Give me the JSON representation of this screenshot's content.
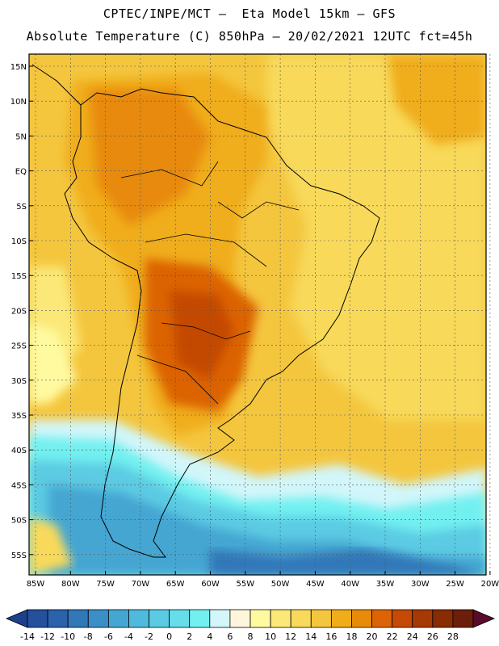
{
  "header": {
    "line1": "CPTEC/INPE/MCT –  Eta Model 15km – GFS",
    "line2": "Absolute Temperature (C) 850hPa – 20/02/2021 12UTC fct=45h"
  },
  "map": {
    "lat_labels": [
      "15N",
      "10N",
      "5N",
      "EQ",
      "5S",
      "10S",
      "15S",
      "20S",
      "25S",
      "30S",
      "35S",
      "40S",
      "45S",
      "50S",
      "55S"
    ],
    "lon_labels": [
      "85W",
      "80W",
      "75W",
      "70W",
      "65W",
      "60W",
      "55W",
      "50W",
      "45W",
      "40W",
      "35W",
      "30W",
      "25W",
      "20W"
    ]
  },
  "colorbar": {
    "ticks": [
      "-14",
      "-12",
      "-10",
      "-8",
      "-6",
      "-4",
      "-2",
      "0",
      "2",
      "4",
      "6",
      "8",
      "10",
      "12",
      "14",
      "16",
      "18",
      "20",
      "22",
      "24",
      "26",
      "28"
    ],
    "colors": [
      "#1e3f8c",
      "#24509c",
      "#2a62ab",
      "#3277b8",
      "#3b8fc6",
      "#45a6d2",
      "#4fbadb",
      "#5bcbe3",
      "#66dde9",
      "#72f0f0",
      "#d2f6fa",
      "#fff5dc",
      "#fffaa0",
      "#fbe878",
      "#f8d95a",
      "#f4c63e",
      "#f0ad1a",
      "#e88a0a",
      "#dc6406",
      "#c44a05",
      "#a63a04",
      "#882c06",
      "#6b1f0a",
      "#5a0a2a"
    ],
    "scale": {
      "min": -14,
      "max": 28,
      "step": 2
    }
  }
}
